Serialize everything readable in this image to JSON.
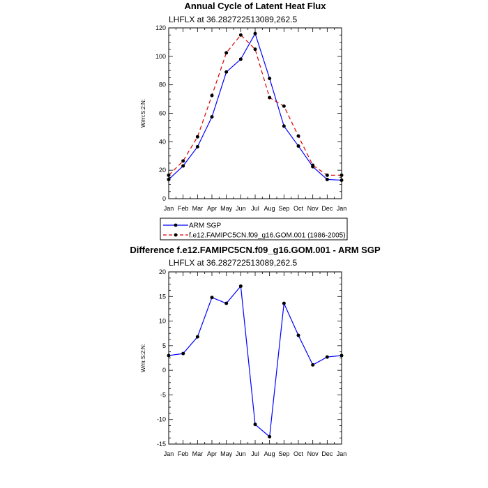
{
  "chart_data": [
    {
      "type": "line",
      "title": "Annual Cycle of Latent Heat Flux",
      "subtitle": "LHFLX at 36.282722513089,262.5",
      "ylabel": "W/m:S:2:N:",
      "xlabel": "",
      "categories": [
        "Jan",
        "Feb",
        "Mar",
        "Apr",
        "May",
        "Jun",
        "Jul",
        "Aug",
        "Sep",
        "Oct",
        "Nov",
        "Dec",
        "Jan"
      ],
      "ylim": [
        0,
        120
      ],
      "yticks": [
        0,
        20,
        40,
        60,
        80,
        100,
        120
      ],
      "series": [
        {
          "name": "ARM SGP",
          "color": "#0000ff",
          "dash": "solid",
          "values": [
            13.5,
            23,
            36.5,
            57.5,
            89,
            98,
            116,
            84.5,
            51,
            37,
            22.5,
            13.5,
            13
          ]
        },
        {
          "name": "f.e12.FAMIPC5CN.f09_g16.GOM.001 (1986-2005)",
          "color": "#dd0000",
          "dash": "dashed",
          "values": [
            16.5,
            26.5,
            43.5,
            72.5,
            102.5,
            115,
            105,
            71,
            65,
            44,
            23.5,
            16.5,
            16.5
          ]
        }
      ],
      "legend": "below"
    },
    {
      "type": "line",
      "title": "Difference f.e12.FAMIPC5CN.f09_g16.GOM.001 - ARM SGP",
      "subtitle": "LHFLX at 36.282722513089,262.5",
      "ylabel": "W/m:S:2:N:",
      "xlabel": "",
      "categories": [
        "Jan",
        "Feb",
        "Mar",
        "Apr",
        "May",
        "Jun",
        "Jul",
        "Aug",
        "Sep",
        "Oct",
        "Nov",
        "Dec",
        "Jan"
      ],
      "ylim": [
        -15,
        20
      ],
      "yticks": [
        -15,
        -10,
        -5,
        0,
        5,
        10,
        15,
        20
      ],
      "series": [
        {
          "color": "#0000ff",
          "dash": "solid",
          "values": [
            3,
            3.4,
            6.8,
            14.8,
            13.6,
            17.1,
            -11,
            -13.5,
            13.6,
            7.1,
            1.1,
            2.7,
            3
          ]
        }
      ]
    }
  ]
}
